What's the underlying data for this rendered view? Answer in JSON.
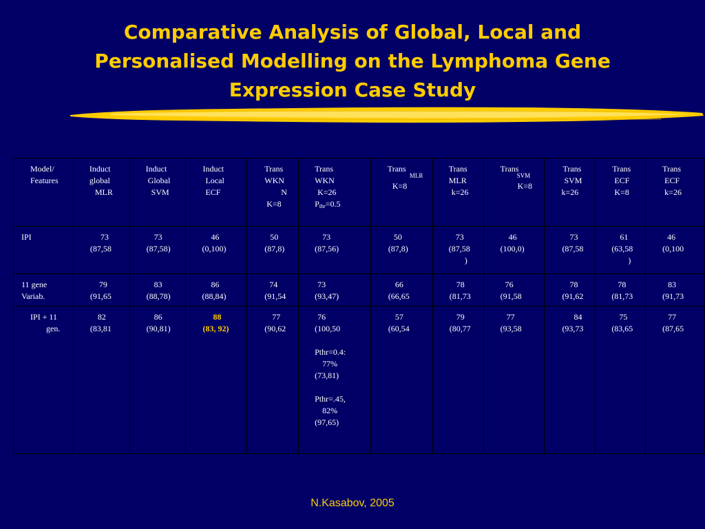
{
  "title": {
    "line1": "Comparative Analysis of Global, Local and",
    "line2": "Personalised Modelling on the Lymphoma Gene",
    "line3": "Expression Case Study"
  },
  "header": {
    "c0": [
      "Model/",
      "Features"
    ],
    "c1": [
      "Induct",
      "global",
      "MLR"
    ],
    "c2": [
      "Induct",
      "Global",
      "SVM"
    ],
    "c3": [
      "Induct",
      "Local",
      "ECF"
    ],
    "c4": [
      "Trans",
      "WKN",
      "N",
      "K=8"
    ],
    "c5": [
      "Trans",
      "WKN",
      "K=26",
      "P",
      "thr",
      "=0.5"
    ],
    "c6": [
      "Trans",
      "MLR",
      "K=8"
    ],
    "c7": [
      "Trans",
      "MLR",
      "k=26"
    ],
    "c8": [
      "Trans",
      "SVM",
      "K=8"
    ],
    "c9": [
      "Trans",
      "SVM",
      "k=26"
    ],
    "c10": [
      "Trans",
      "ECF",
      "K=8"
    ],
    "c11": [
      "Trans",
      "ECF",
      "k=26"
    ]
  },
  "rows": {
    "ipi": {
      "label": "IPI",
      "c1": [
        "73",
        "(87,58"
      ],
      "c2": [
        "73",
        "(87,58)"
      ],
      "c3": [
        "46",
        "(0,100)"
      ],
      "c4": [
        "50",
        "(87,8)"
      ],
      "c5": [
        "73",
        "(87,56)"
      ],
      "c6": [
        "50",
        "(87,8)"
      ],
      "c7": [
        "73",
        "(87,58",
        ")"
      ],
      "c8": [
        "46",
        "(100,0)"
      ],
      "c9": [
        "73",
        "(87,58"
      ],
      "c10": [
        "61",
        "(63,58",
        ")"
      ],
      "c11": [
        "46",
        "(0,100"
      ]
    },
    "gene": {
      "label": [
        "11 gene",
        "Variab."
      ],
      "c1": [
        "79",
        "(91,65"
      ],
      "c2": [
        "83",
        "(88,78)"
      ],
      "c3": [
        "86",
        "(88,84)"
      ],
      "c4": [
        "74",
        "(91,54"
      ],
      "c5": [
        "73",
        "(93,47)"
      ],
      "c6": [
        "66",
        "(66,65"
      ],
      "c7": [
        "78",
        "(81,73"
      ],
      "c8": [
        "76",
        "(91,58"
      ],
      "c9": [
        "78",
        "(91,62"
      ],
      "c10": [
        "78",
        "(81,73"
      ],
      "c11": [
        "83",
        "(91,73"
      ]
    },
    "combo": {
      "label": [
        "IPI + 11",
        "gen."
      ],
      "c1": [
        "82",
        "(83,81"
      ],
      "c2": [
        "86",
        "(90,81)"
      ],
      "c3": [
        "88",
        "(83, 92)"
      ],
      "c4": [
        "77",
        "(90,62"
      ],
      "c5": [
        "76",
        "(100,50",
        "Pthr=0.4:",
        "77%",
        "(73,81)",
        "Pthr=.45,",
        "82%",
        "(97,65)"
      ],
      "c6": [
        "57",
        "(60,54"
      ],
      "c7": [
        "79",
        "(80,77"
      ],
      "c8": [
        "77",
        "(93,58"
      ],
      "c9": [
        "84",
        "(93,73"
      ],
      "c10": [
        "75",
        "(83,65"
      ],
      "c11": [
        "77",
        "(87,65"
      ]
    }
  },
  "footer": "N.Kasabov, 2005",
  "colors": {
    "background": "#000066",
    "accent": "#ffcc00",
    "text": "#ffffff"
  }
}
